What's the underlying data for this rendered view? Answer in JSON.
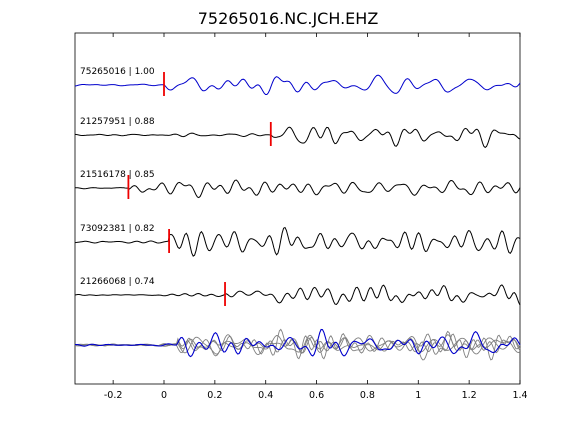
{
  "chart_data": {
    "type": "line",
    "title": "75265016.NC.JCH.EHZ",
    "xlabel": "",
    "ylabel": "",
    "xlim": [
      -0.35,
      1.4
    ],
    "x_ticks": [
      -0.2,
      0,
      0.2,
      0.4,
      0.6,
      0.8,
      1,
      1.2,
      1.4
    ],
    "x_tick_labels": [
      "-0.2",
      "0",
      "0.2",
      "0.4",
      "0.6",
      "0.8",
      "1",
      "1.2",
      "1.4"
    ],
    "grid": false,
    "colors": {
      "master": "#0000cc",
      "other": "#000000",
      "overlay_gray": "#808080",
      "pick": "#ee0000"
    },
    "traces": [
      {
        "label": "75265016 | 1.00",
        "pick_time": 0.0,
        "color": "#0000cc"
      },
      {
        "label": "21257951 | 0.88",
        "pick_time": 0.42,
        "color": "#000000"
      },
      {
        "label": "21516178 | 0.85",
        "pick_time": -0.14,
        "color": "#000000"
      },
      {
        "label": "73092381 | 0.82",
        "pick_time": 0.02,
        "color": "#000000"
      },
      {
        "label": "21266068 | 0.74",
        "pick_time": 0.24,
        "color": "#000000"
      }
    ]
  }
}
